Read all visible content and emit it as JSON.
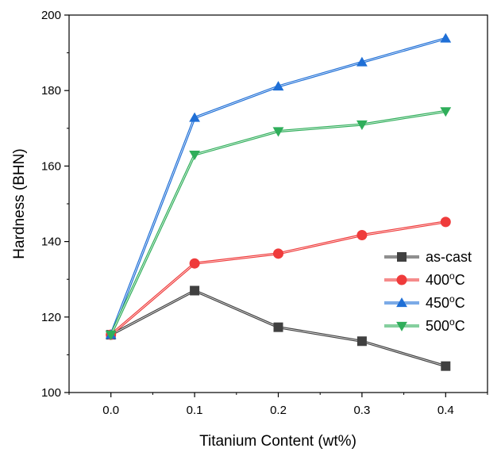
{
  "chart_data": {
    "type": "line",
    "title": "",
    "xlabel": "Titanium Content (wt%)",
    "ylabel": "Hardness (BHN)",
    "xlim": [
      -0.05,
      0.45
    ],
    "ylim": [
      100,
      200
    ],
    "x_ticks": [
      "0.0",
      "0.1",
      "0.2",
      "0.3",
      "0.4"
    ],
    "y_ticks": [
      "100",
      "120",
      "140",
      "160",
      "180",
      "200"
    ],
    "x": [
      0.0,
      0.1,
      0.2,
      0.3,
      0.4
    ],
    "grid": false,
    "legend_position": "lower-right",
    "series": [
      {
        "name": "as-cast",
        "unit": "",
        "color": "#404040",
        "marker": "square",
        "values": [
          115.3,
          127.0,
          117.3,
          113.6,
          107.0
        ]
      },
      {
        "name": "400",
        "unit": "o C",
        "color": "#ef3b3b",
        "marker": "circle",
        "values": [
          115.3,
          134.2,
          136.8,
          141.7,
          145.2
        ]
      },
      {
        "name": "450",
        "unit": "o C",
        "color": "#1f6fd6",
        "marker": "triangle-up",
        "values": [
          115.3,
          172.8,
          181.1,
          187.5,
          193.8
        ]
      },
      {
        "name": "500",
        "unit": "o C",
        "color": "#2fae5a",
        "marker": "triangle-down",
        "values": [
          115.3,
          163.0,
          169.2,
          171.0,
          174.5
        ]
      }
    ]
  }
}
